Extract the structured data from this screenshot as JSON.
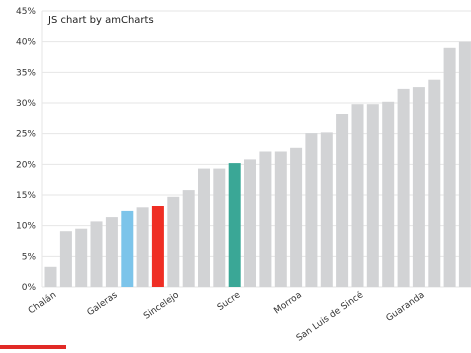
{
  "credit": "JS chart by amCharts",
  "chart_data": {
    "type": "bar",
    "ylim": [
      0,
      45
    ],
    "y_ticks": [
      "0%",
      "5%",
      "10%",
      "15%",
      "20%",
      "25%",
      "30%",
      "35%",
      "40%",
      "45%"
    ],
    "grid": true,
    "values": [
      3.3,
      9.1,
      9.5,
      10.7,
      11.4,
      12.4,
      13.0,
      13.2,
      14.7,
      15.8,
      19.3,
      19.3,
      20.2,
      20.8,
      22.1,
      22.1,
      22.7,
      25.1,
      25.2,
      28.2,
      29.8,
      29.8,
      30.2,
      32.3,
      32.6,
      33.8,
      39.0,
      40.0
    ],
    "labeled_categories": [
      {
        "index": 0,
        "label": "Chalán"
      },
      {
        "index": 4,
        "label": "Galeras"
      },
      {
        "index": 8,
        "label": "Sincelejo"
      },
      {
        "index": 12,
        "label": "Sucre"
      },
      {
        "index": 16,
        "label": "Morroa"
      },
      {
        "index": 20,
        "label": "San Luis de Sincé"
      },
      {
        "index": 24,
        "label": "Guaranda"
      }
    ],
    "highlights": [
      {
        "index": 5,
        "color": "#7cc4ea"
      },
      {
        "index": 7,
        "color": "#ef2e24"
      },
      {
        "index": 12,
        "color": "#3aa796"
      }
    ],
    "default_bar_color": "#d2d3d5"
  },
  "colors": {
    "accent_red": "#e12a26"
  }
}
